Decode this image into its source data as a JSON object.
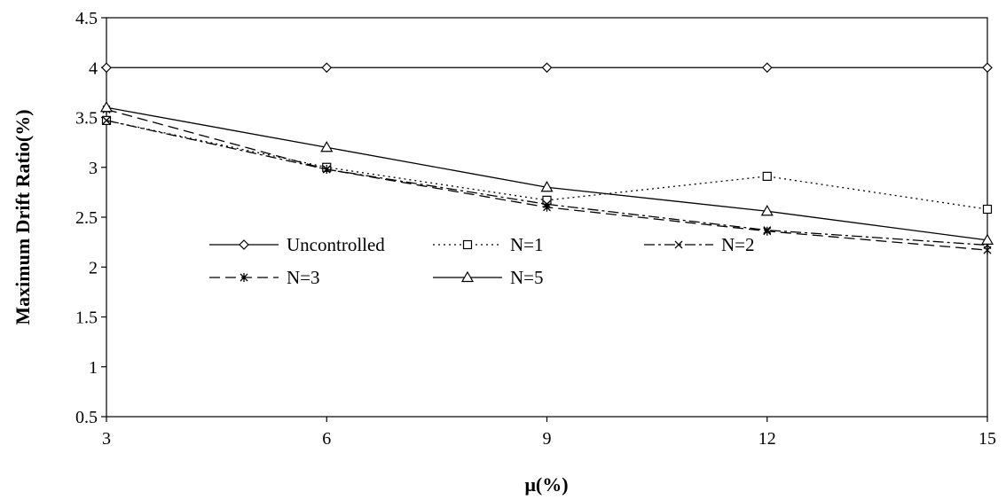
{
  "chart_data": {
    "type": "line",
    "xlabel": "μ(%)",
    "ylabel": "Maximum Drift Ratio(%)",
    "x": [
      3,
      6,
      9,
      12,
      15
    ],
    "xlim": [
      3,
      15
    ],
    "ylim": [
      0.5,
      4.5
    ],
    "xticks": [
      "3",
      "6",
      "9",
      "12",
      "15"
    ],
    "yticks": [
      "0.5",
      "1",
      "1.5",
      "2",
      "2.5",
      "3",
      "3.5",
      "4",
      "4.5"
    ],
    "grid": false,
    "legend_position": "inside-center",
    "series": [
      {
        "name": "Uncontrolled",
        "values": [
          4.0,
          4.0,
          4.0,
          4.0,
          4.0
        ],
        "marker": "diamond",
        "dash": "solid"
      },
      {
        "name": "N=1",
        "values": [
          3.47,
          3.0,
          2.67,
          2.91,
          2.58
        ],
        "marker": "square",
        "dash": "dotted"
      },
      {
        "name": "N=2",
        "values": [
          3.47,
          2.98,
          2.63,
          2.37,
          2.22
        ],
        "marker": "x",
        "dash": "dashdot"
      },
      {
        "name": "N=3",
        "values": [
          3.58,
          2.98,
          2.6,
          2.36,
          2.17
        ],
        "marker": "asterisk",
        "dash": "dashed"
      },
      {
        "name": "N=5",
        "values": [
          3.6,
          3.2,
          2.8,
          2.56,
          2.27
        ],
        "marker": "triangle",
        "dash": "solid"
      }
    ]
  }
}
